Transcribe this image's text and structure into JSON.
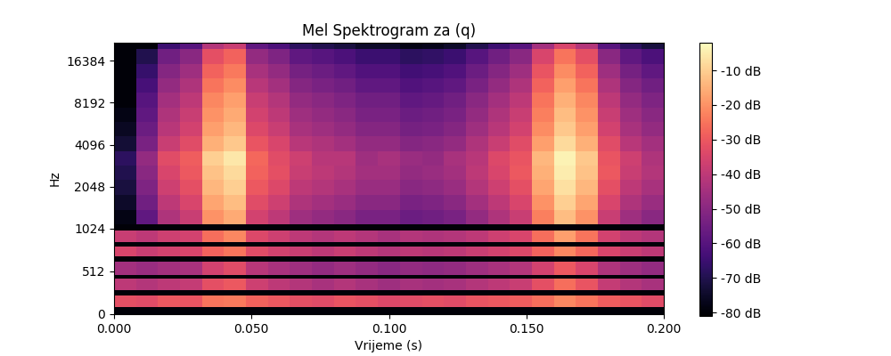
{
  "chart_data": {
    "type": "heatmap",
    "title": "Mel Spektrogram za (q)",
    "x_label": "Vrijeme (s)",
    "y_label": "Hz",
    "log": "y",
    "xlim": [
      0,
      0.2
    ],
    "xticks": [
      {
        "value": 0,
        "label": "0.000"
      },
      {
        "value": 0.05,
        "label": "0.050"
      },
      {
        "value": 0.1,
        "label": "0.100"
      },
      {
        "value": 0.15,
        "label": "0.150"
      },
      {
        "value": 0.2,
        "label": "0.200"
      }
    ],
    "ylim": [
      0,
      22050
    ],
    "yticks": [
      0,
      512,
      1024,
      2048,
      4096,
      8192,
      16384
    ],
    "x_edges": [
      0,
      0.008,
      0.016,
      0.024,
      0.032,
      0.04,
      0.048,
      0.056,
      0.064,
      0.072,
      0.08,
      0.088,
      0.096,
      0.104,
      0.112,
      0.12,
      0.128,
      0.136,
      0.144,
      0.152,
      0.16,
      0.168,
      0.176,
      0.184,
      0.192,
      0.2
    ],
    "y_edges": [
      0,
      80,
      220,
      290,
      420,
      470,
      620,
      690,
      800,
      860,
      1000,
      1100,
      1400,
      1800,
      2300,
      2900,
      3700,
      4700,
      6000,
      7600,
      9700,
      12300,
      15600,
      19800,
      22050
    ],
    "cells": [
      [
        -80,
        -80,
        -80,
        -80,
        -80,
        -80,
        -80,
        -80,
        -80,
        -80,
        -80,
        -80,
        -80,
        -80,
        -80,
        -80,
        -80,
        -80,
        -80,
        -80,
        -80,
        -80,
        -80,
        -80,
        -80
      ],
      [
        -32,
        -33,
        -30,
        -31,
        -25,
        -24,
        -28,
        -30,
        -32,
        -33,
        -31,
        -32,
        -34,
        -33,
        -32,
        -33,
        -31,
        -30,
        -29,
        -26,
        -22,
        -25,
        -29,
        -31,
        -33
      ],
      [
        -80,
        -80,
        -80,
        -80,
        -80,
        -80,
        -80,
        -80,
        -80,
        -80,
        -80,
        -80,
        -80,
        -80,
        -80,
        -80,
        -80,
        -80,
        -80,
        -80,
        -80,
        -80,
        -80,
        -80,
        -80
      ],
      [
        -40,
        -42,
        -40,
        -39,
        -32,
        -30,
        -37,
        -40,
        -42,
        -44,
        -42,
        -44,
        -46,
        -44,
        -45,
        -44,
        -42,
        -40,
        -38,
        -32,
        -26,
        -31,
        -39,
        -42,
        -44
      ],
      [
        -80,
        -80,
        -80,
        -80,
        -80,
        -80,
        -80,
        -80,
        -80,
        -80,
        -80,
        -80,
        -80,
        -80,
        -80,
        -80,
        -80,
        -80,
        -80,
        -80,
        -80,
        -80,
        -80,
        -80,
        -80
      ],
      [
        -45,
        -47,
        -45,
        -44,
        -36,
        -33,
        -41,
        -44,
        -46,
        -48,
        -46,
        -48,
        -50,
        -48,
        -49,
        -48,
        -46,
        -44,
        -42,
        -36,
        -30,
        -35,
        -43,
        -46,
        -48
      ],
      [
        -80,
        -80,
        -80,
        -80,
        -80,
        -80,
        -80,
        -80,
        -80,
        -80,
        -80,
        -80,
        -80,
        -80,
        -80,
        -80,
        -80,
        -80,
        -80,
        -80,
        -80,
        -80,
        -80,
        -80,
        -80
      ],
      [
        -35,
        -38,
        -36,
        -35,
        -28,
        -25,
        -33,
        -36,
        -38,
        -40,
        -38,
        -40,
        -42,
        -40,
        -41,
        -40,
        -38,
        -36,
        -34,
        -28,
        -22,
        -27,
        -35,
        -38,
        -40
      ],
      [
        -80,
        -80,
        -80,
        -80,
        -80,
        -80,
        -80,
        -80,
        -80,
        -80,
        -80,
        -80,
        -80,
        -80,
        -80,
        -80,
        -80,
        -80,
        -80,
        -80,
        -80,
        -80,
        -80,
        -80,
        -80
      ],
      [
        -38,
        -40,
        -37,
        -36,
        -26,
        -22,
        -34,
        -37,
        -40,
        -42,
        -40,
        -42,
        -44,
        -42,
        -43,
        -42,
        -40,
        -37,
        -35,
        -26,
        -18,
        -25,
        -36,
        -40,
        -42
      ],
      [
        -80,
        -80,
        -80,
        -80,
        -80,
        -80,
        -80,
        -80,
        -80,
        -80,
        -80,
        -80,
        -80,
        -80,
        -80,
        -80,
        -80,
        -80,
        -80,
        -80,
        -80,
        -80,
        -80,
        -80,
        -80
      ],
      [
        -78,
        -58,
        -43,
        -38,
        -20,
        -16,
        -36,
        -40,
        -46,
        -48,
        -50,
        -53,
        -53,
        -56,
        -55,
        -53,
        -48,
        -43,
        -38,
        -23,
        -13,
        -20,
        -38,
        -46,
        -50
      ],
      [
        -75,
        -55,
        -40,
        -35,
        -17,
        -13,
        -33,
        -37,
        -43,
        -45,
        -47,
        -50,
        -50,
        -53,
        -52,
        -50,
        -45,
        -40,
        -35,
        -20,
        -10,
        -17,
        -35,
        -43,
        -47
      ],
      [
        -72,
        -52,
        -37,
        -32,
        -14,
        -10,
        -30,
        -34,
        -40,
        -42,
        -44,
        -47,
        -47,
        -50,
        -49,
        -47,
        -42,
        -37,
        -32,
        -17,
        -7,
        -14,
        -32,
        -40,
        -44
      ],
      [
        -70,
        -50,
        -35,
        -30,
        -12,
        -8,
        -28,
        -32,
        -38,
        -40,
        -42,
        -45,
        -45,
        -48,
        -47,
        -45,
        -40,
        -35,
        -30,
        -15,
        -5,
        -12,
        -30,
        -38,
        -42
      ],
      [
        -68,
        -48,
        -33,
        -29,
        -10,
        -6,
        -27,
        -33,
        -37,
        -41,
        -41,
        -46,
        -44,
        -47,
        -48,
        -44,
        -41,
        -34,
        -31,
        -14,
        -4,
        -11,
        -31,
        -37,
        -43
      ],
      [
        -73,
        -53,
        -38,
        -33,
        -15,
        -11,
        -31,
        -35,
        -41,
        -43,
        -45,
        -48,
        -48,
        -51,
        -50,
        -48,
        -43,
        -38,
        -33,
        -18,
        -8,
        -15,
        -33,
        -41,
        -45
      ],
      [
        -76,
        -56,
        -41,
        -36,
        -18,
        -14,
        -34,
        -38,
        -44,
        -46,
        -48,
        -51,
        -51,
        -54,
        -53,
        -51,
        -46,
        -41,
        -36,
        -21,
        -11,
        -18,
        -36,
        -44,
        -48
      ],
      [
        -78,
        -58,
        -43,
        -38,
        -20,
        -16,
        -36,
        -40,
        -46,
        -48,
        -50,
        -53,
        -53,
        -56,
        -55,
        -53,
        -48,
        -43,
        -38,
        -23,
        -13,
        -20,
        -38,
        -46,
        -50
      ],
      [
        -80,
        -60,
        -45,
        -40,
        -22,
        -18,
        -38,
        -42,
        -48,
        -50,
        -52,
        -55,
        -55,
        -58,
        -57,
        -55,
        -50,
        -45,
        -40,
        -25,
        -15,
        -22,
        -40,
        -48,
        -52
      ],
      [
        -80,
        -63,
        -48,
        -43,
        -25,
        -21,
        -41,
        -45,
        -51,
        -53,
        -55,
        -58,
        -58,
        -61,
        -60,
        -58,
        -53,
        -48,
        -43,
        -28,
        -18,
        -25,
        -43,
        -51,
        -55
      ],
      [
        -80,
        -66,
        -51,
        -46,
        -28,
        -24,
        -44,
        -48,
        -54,
        -56,
        -58,
        -61,
        -61,
        -64,
        -63,
        -61,
        -56,
        -51,
        -46,
        -31,
        -21,
        -28,
        -46,
        -54,
        -58
      ],
      [
        -80,
        -70,
        -55,
        -50,
        -32,
        -28,
        -48,
        -52,
        -58,
        -60,
        -62,
        -65,
        -65,
        -68,
        -67,
        -65,
        -60,
        -55,
        -50,
        -35,
        -25,
        -32,
        -50,
        -58,
        -62
      ],
      [
        -80,
        -80,
        -65,
        -60,
        -42,
        -38,
        -58,
        -62,
        -68,
        -70,
        -72,
        -75,
        -75,
        -78,
        -77,
        -75,
        -70,
        -65,
        -60,
        -45,
        -35,
        -42,
        -60,
        -68,
        -72
      ]
    ],
    "colorbar": {
      "range": [
        -81,
        -2
      ],
      "ticks": [
        {
          "value": -10,
          "label": "-10 dB"
        },
        {
          "value": -20,
          "label": "-20 dB"
        },
        {
          "value": -30,
          "label": "-30 dB"
        },
        {
          "value": -40,
          "label": "-40 dB"
        },
        {
          "value": -50,
          "label": "-50 dB"
        },
        {
          "value": -60,
          "label": "-60 dB"
        },
        {
          "value": -70,
          "label": "-70 dB"
        },
        {
          "value": -80,
          "label": "-80 dB"
        }
      ]
    }
  }
}
